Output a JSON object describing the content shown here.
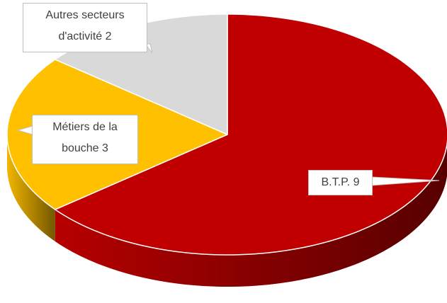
{
  "chart_data": {
    "type": "pie",
    "categories": [
      "B.T.P.",
      "Métiers de la bouche",
      "Autres secteurs d'activité"
    ],
    "values": [
      9,
      3,
      2
    ],
    "colors": [
      "#c00000",
      "#ffc000",
      "#d9d9d9"
    ]
  }
}
